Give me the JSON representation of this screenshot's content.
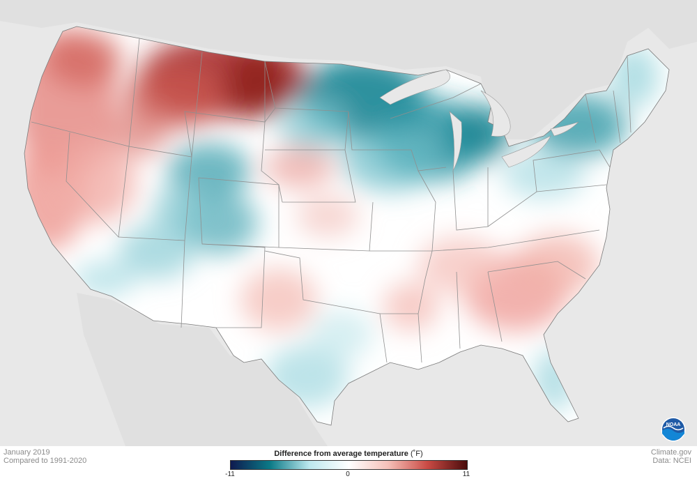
{
  "legend": {
    "title": "Difference from average temperature",
    "unit": "(˚F)",
    "min_label": "-11",
    "mid_label": "0",
    "max_label": "11",
    "colors": [
      "#0e1a4f",
      "#0b7a87",
      "#bde8ee",
      "#ffffff",
      "#f5c0b8",
      "#c94a44",
      "#4a0c0c"
    ]
  },
  "caption": {
    "period": "January 2019",
    "baseline": "Compared to 1991-2020"
  },
  "credits": {
    "site": "Climate.gov",
    "data_source": "Data: NCEI"
  },
  "logo": {
    "text": "NOAA",
    "icon": "noaa-logo-icon"
  },
  "map": {
    "land_color": "#ffffff",
    "background_color": "#e6e6e6",
    "border_color": "#9a9a9a"
  }
}
